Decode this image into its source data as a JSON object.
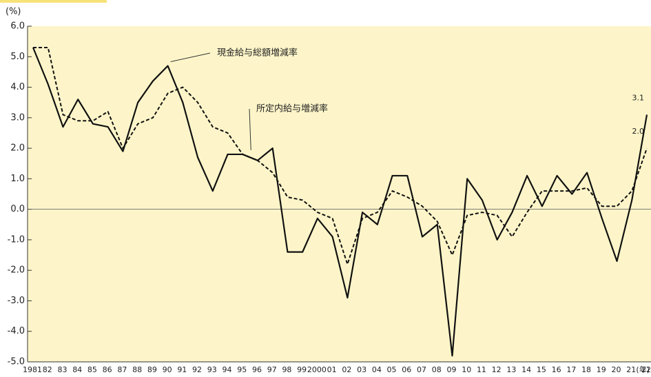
{
  "chart_data": {
    "type": "line",
    "y_unit": "(%)",
    "x_unit": "(年)",
    "categories": [
      "1981",
      "82",
      "83",
      "84",
      "85",
      "86",
      "87",
      "88",
      "89",
      "90",
      "91",
      "92",
      "93",
      "94",
      "95",
      "96",
      "97",
      "98",
      "99",
      "2000",
      "01",
      "02",
      "03",
      "04",
      "05",
      "06",
      "07",
      "08",
      "09",
      "10",
      "11",
      "12",
      "13",
      "14",
      "15",
      "16",
      "17",
      "18",
      "19",
      "20",
      "21",
      "22"
    ],
    "series": [
      {
        "name": "現金給与総額増減率",
        "color": "#111111",
        "dash": "solid",
        "values": [
          5.3,
          4.1,
          2.7,
          3.6,
          2.8,
          2.7,
          1.9,
          3.5,
          4.2,
          4.7,
          3.5,
          1.7,
          0.6,
          1.8,
          1.8,
          1.6,
          2.0,
          -1.4,
          -1.4,
          -0.3,
          -0.9,
          -2.9,
          -0.1,
          -0.5,
          1.1,
          1.1,
          -0.9,
          -0.5,
          -4.8,
          1.0,
          0.3,
          -1.0,
          -0.1,
          1.1,
          0.1,
          1.1,
          0.5,
          1.2,
          -0.3,
          -1.7,
          0.3,
          3.1
        ],
        "value_labels": [
          null,
          null,
          null,
          null,
          null,
          null,
          null,
          null,
          null,
          null,
          null,
          null,
          null,
          null,
          null,
          null,
          null,
          null,
          null,
          null,
          null,
          null,
          null,
          null,
          null,
          null,
          null,
          null,
          null,
          null,
          null,
          null,
          null,
          null,
          null,
          null,
          null,
          null,
          null,
          null,
          null,
          "3.1"
        ]
      },
      {
        "name": "所定内給与増減率",
        "color": "#111111",
        "dash": "dashed",
        "values": [
          5.3,
          5.3,
          3.1,
          2.9,
          2.9,
          3.2,
          2.0,
          2.8,
          3.0,
          3.8,
          4.0,
          3.5,
          2.7,
          2.5,
          1.8,
          1.6,
          1.2,
          0.4,
          0.3,
          -0.1,
          -0.3,
          -1.8,
          -0.3,
          -0.1,
          0.6,
          0.4,
          0.1,
          -0.4,
          -1.5,
          -0.2,
          -0.1,
          -0.2,
          -0.9,
          -0.1,
          0.6,
          0.6,
          0.6,
          0.7,
          0.1,
          0.1,
          0.6,
          2.0
        ],
        "value_labels": [
          null,
          null,
          null,
          null,
          null,
          null,
          null,
          null,
          null,
          null,
          null,
          null,
          null,
          null,
          null,
          null,
          null,
          null,
          null,
          null,
          null,
          null,
          null,
          null,
          null,
          null,
          null,
          null,
          null,
          null,
          null,
          null,
          null,
          null,
          null,
          null,
          null,
          null,
          null,
          null,
          null,
          "2.0"
        ]
      }
    ],
    "ylim": [
      -5,
      6
    ],
    "yticks": [
      {
        "value": 6,
        "label": "6.0"
      },
      {
        "value": 5,
        "label": "5.0"
      },
      {
        "value": 4,
        "label": "4.0"
      },
      {
        "value": 3,
        "label": "3.0"
      },
      {
        "value": 2,
        "label": "2.0"
      },
      {
        "value": 1,
        "label": "1.0"
      },
      {
        "value": 0,
        "label": "0.0"
      },
      {
        "value": -1,
        "label": "-1.0"
      },
      {
        "value": -2,
        "label": "-2.0"
      },
      {
        "value": -3,
        "label": "-3.0"
      },
      {
        "value": -4,
        "label": "-4.0"
      },
      {
        "value": -5,
        "label": "-5.0"
      }
    ],
    "background": "#fdf5c9"
  }
}
